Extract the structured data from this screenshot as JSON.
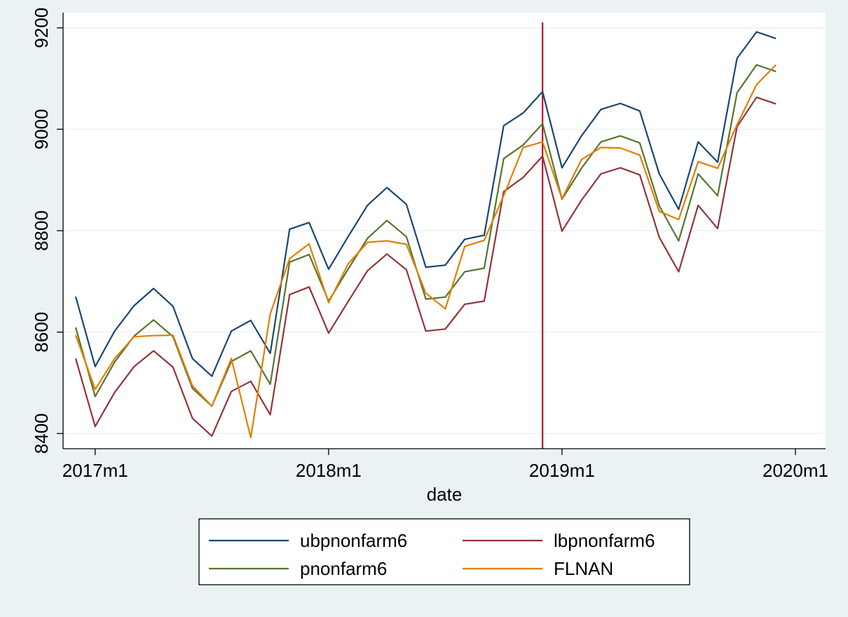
{
  "chart_data": {
    "type": "line",
    "title": "",
    "xlabel": "date",
    "ylabel": "",
    "x_tick_labels": [
      "2017m1",
      "2018m1",
      "2019m1",
      "2020m1"
    ],
    "y_tick_labels": [
      "8400",
      "8600",
      "8800",
      "9000",
      "9200"
    ],
    "ylim": [
      8370,
      9230
    ],
    "xlim": [
      "2016m11",
      "2020m2"
    ],
    "grid": "horizontal",
    "legend_position": "bottom",
    "reference_line": {
      "x": "2018m12",
      "color": "#b5122e"
    },
    "x": [
      "2016m12",
      "2017m1",
      "2017m2",
      "2017m3",
      "2017m4",
      "2017m5",
      "2017m6",
      "2017m7",
      "2017m8",
      "2017m9",
      "2017m10",
      "2017m11",
      "2017m12",
      "2018m1",
      "2018m2",
      "2018m3",
      "2018m4",
      "2018m5",
      "2018m6",
      "2018m7",
      "2018m8",
      "2018m9",
      "2018m10",
      "2018m11",
      "2018m12",
      "2019m1",
      "2019m2",
      "2019m3",
      "2019m4",
      "2019m5",
      "2019m6",
      "2019m7",
      "2019m8",
      "2019m9",
      "2019m10",
      "2019m11",
      "2019m12"
    ],
    "series": [
      {
        "name": "ubpnonfarm6",
        "color": "#1a476f",
        "values": [
          8670,
          8532,
          8602,
          8652,
          8686,
          8651,
          8548,
          8513,
          8602,
          8623,
          8558,
          8803,
          8816,
          8724,
          8788,
          8850,
          8885,
          8852,
          8728,
          8732,
          8783,
          8791,
          9007,
          9032,
          9074,
          8924,
          8987,
          9039,
          9051,
          9036,
          8912,
          8842,
          8975,
          8935,
          9140,
          9192,
          9179
        ]
      },
      {
        "name": "lbpnonfarm6",
        "color": "#90353b",
        "values": [
          8548,
          8414,
          8481,
          8532,
          8563,
          8531,
          8430,
          8395,
          8483,
          8503,
          8437,
          8674,
          8689,
          8598,
          8660,
          8721,
          8754,
          8723,
          8602,
          8606,
          8655,
          8661,
          8877,
          8905,
          8947,
          8799,
          8860,
          8912,
          8924,
          8910,
          8787,
          8719,
          8850,
          8804,
          9005,
          9063,
          9050
        ]
      },
      {
        "name": "pnonfarm6",
        "color": "#55752f",
        "values": [
          8609,
          8473,
          8541,
          8592,
          8624,
          8591,
          8489,
          8454,
          8542,
          8563,
          8497,
          8738,
          8753,
          8661,
          8724,
          8785,
          8820,
          8788,
          8665,
          8669,
          8719,
          8726,
          8942,
          8969,
          9011,
          8862,
          8923,
          8975,
          8987,
          8973,
          8849,
          8780,
          8912,
          8869,
          9072,
          9127,
          9114
        ]
      },
      {
        "name": "FLNAN",
        "color": "#e37e00",
        "values": [
          8594,
          8487,
          8548,
          8591,
          8593,
          8594,
          8494,
          8454,
          8548,
          8392,
          8636,
          8745,
          8774,
          8658,
          8734,
          8777,
          8780,
          8773,
          8677,
          8646,
          8769,
          8781,
          8869,
          8964,
          8975,
          8863,
          8940,
          8964,
          8963,
          8949,
          8838,
          8822,
          8936,
          8923,
          9009,
          9088,
          9127
        ]
      }
    ],
    "legend_entries": [
      "ubpnonfarm6",
      "lbpnonfarm6",
      "pnonfarm6",
      "FLNAN"
    ]
  }
}
